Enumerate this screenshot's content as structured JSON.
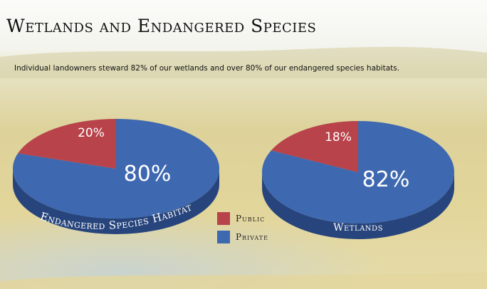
{
  "slide": {
    "title": "Wetlands and Endangered Species",
    "subtitle": "Individual landowners steward 82% of our wetlands and over 80% of our endangered species habitats."
  },
  "colors": {
    "public": "#b8434a",
    "public_side": "#7e2a30",
    "private": "#3e68b0",
    "private_side": "#27457c",
    "label": "#ffffff"
  },
  "legend": [
    {
      "name": "Public",
      "color": "#b8434a"
    },
    {
      "name": "Private",
      "color": "#3e68b0"
    }
  ],
  "chart_data": [
    {
      "type": "pie",
      "title": "Endangered Species Habitat",
      "slices": [
        {
          "name": "Public",
          "value": 20,
          "label": "20%"
        },
        {
          "name": "Private",
          "value": 80,
          "label": "80%"
        }
      ]
    },
    {
      "type": "pie",
      "title": "Wetlands",
      "slices": [
        {
          "name": "Public",
          "value": 18,
          "label": "18%"
        },
        {
          "name": "Private",
          "value": 82,
          "label": "82%"
        }
      ]
    }
  ]
}
